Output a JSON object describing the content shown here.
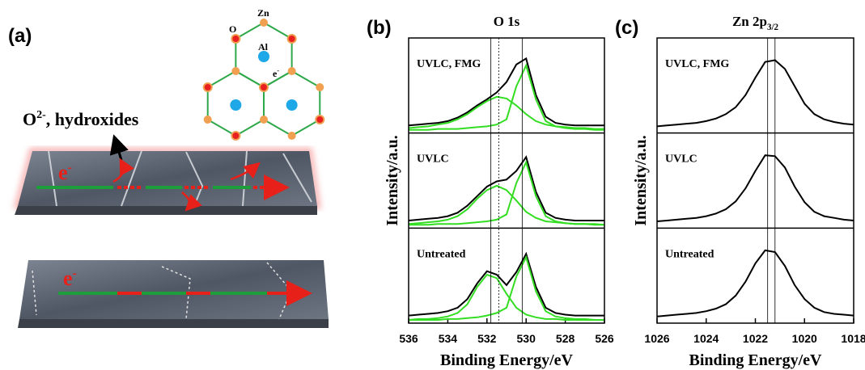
{
  "panel_a": {
    "label": "(a)",
    "lattice": {
      "Zn": "Zn",
      "O": "O",
      "Al": "Al",
      "electron": {
        "base": "e",
        "sup": "-"
      }
    },
    "annotation": {
      "base": "O",
      "sup": "2-",
      "rest": ",  hydroxides"
    },
    "top_electron": {
      "base": "e",
      "sup": "-"
    },
    "bottom_electron": {
      "base": "e",
      "sup": "-"
    }
  },
  "chart_data": [
    {
      "type": "line",
      "panel_label": "(b)",
      "title": "O 1s",
      "x_label": "Binding Energy/eV",
      "y_label": "Intensity/a.u.",
      "x": [
        536,
        535.5,
        535,
        534.5,
        534,
        533.5,
        533,
        532.5,
        532,
        531.5,
        531,
        530.5,
        530,
        529.5,
        529,
        528.5,
        528,
        527.5,
        527,
        526.5,
        526
      ],
      "xlim": [
        536,
        526
      ],
      "xticks": [
        536,
        534,
        532,
        530,
        528,
        526
      ],
      "ylim": [
        0,
        100
      ],
      "reference_lines": [
        {
          "value": 531.8,
          "style": "solid"
        },
        {
          "value": 531.4,
          "style": "dotted"
        },
        {
          "value": 530.2,
          "style": "solid"
        }
      ],
      "subplots": [
        {
          "label": "UVLC, FMG",
          "series": [
            {
              "color": "#000000",
              "values": [
                5,
                6,
                7,
                8,
                10,
                14,
                20,
                28,
                35,
                43,
                55,
                75,
                82,
                40,
                15,
                8,
                6,
                5,
                5,
                5,
                5
              ]
            },
            {
              "color": "#33dd22",
              "values": [
                0,
                0,
                0,
                1,
                1,
                1,
                2,
                3,
                4,
                6,
                12,
                50,
                74,
                35,
                10,
                4,
                2,
                1,
                1,
                0,
                0
              ]
            },
            {
              "color": "#33dd22",
              "values": [
                2,
                3,
                4,
                6,
                8,
                12,
                18,
                26,
                33,
                38,
                36,
                28,
                18,
                10,
                6,
                4,
                3,
                2,
                2,
                1,
                1
              ]
            }
          ]
        },
        {
          "label": "UVLC",
          "series": [
            {
              "color": "#000000",
              "values": [
                5,
                6,
                7,
                8,
                10,
                14,
                22,
                33,
                44,
                50,
                52,
                62,
                78,
                38,
                14,
                8,
                6,
                5,
                5,
                5,
                5
              ]
            },
            {
              "color": "#33dd22",
              "values": [
                0,
                0,
                0,
                1,
                1,
                1,
                2,
                3,
                4,
                6,
                12,
                48,
                72,
                33,
                10,
                4,
                2,
                1,
                1,
                0,
                0
              ]
            },
            {
              "color": "#33dd22",
              "values": [
                1,
                2,
                3,
                4,
                6,
                10,
                18,
                30,
                40,
                45,
                40,
                28,
                15,
                8,
                4,
                3,
                2,
                1,
                1,
                1,
                0
              ]
            }
          ]
        },
        {
          "label": "Untreated",
          "series": [
            {
              "color": "#000000",
              "values": [
                5,
                6,
                7,
                8,
                10,
                14,
                24,
                42,
                56,
                52,
                40,
                55,
                76,
                38,
                14,
                8,
                6,
                5,
                5,
                5,
                5
              ]
            },
            {
              "color": "#33dd22",
              "values": [
                0,
                1,
                1,
                2,
                4,
                8,
                18,
                38,
                52,
                48,
                30,
                14,
                6,
                3,
                1,
                1,
                0,
                0,
                0,
                0,
                0
              ]
            },
            {
              "color": "#33dd22",
              "values": [
                0,
                0,
                0,
                0,
                1,
                1,
                2,
                3,
                5,
                8,
                14,
                50,
                72,
                33,
                10,
                4,
                2,
                1,
                1,
                0,
                0
              ]
            }
          ]
        }
      ]
    },
    {
      "type": "line",
      "panel_label": "(c)",
      "title": {
        "base": "Zn 2p",
        "sub": "3/2"
      },
      "x_label": "Binding Energy/eV",
      "y_label": "Intensity/a.u.",
      "x": [
        1026,
        1025.6,
        1025.2,
        1024.8,
        1024.4,
        1024,
        1023.6,
        1023.2,
        1022.8,
        1022.4,
        1022,
        1021.6,
        1021.2,
        1020.8,
        1020.4,
        1020,
        1019.6,
        1019.2,
        1018.8,
        1018.4,
        1018
      ],
      "xlim": [
        1026,
        1018
      ],
      "xticks": [
        1026,
        1024,
        1022,
        1020,
        1018
      ],
      "ylim": [
        0,
        100
      ],
      "reference_lines": [
        {
          "value": 1021.5,
          "style": "solid"
        },
        {
          "value": 1021.2,
          "style": "solid"
        }
      ],
      "subplots": [
        {
          "label": "UVLC, FMG",
          "series": [
            {
              "color": "#000000",
              "values": [
                4,
                5,
                6,
                7,
                8,
                10,
                13,
                18,
                26,
                40,
                60,
                78,
                80,
                70,
                50,
                30,
                18,
                12,
                9,
                7,
                6
              ]
            }
          ]
        },
        {
          "label": "UVLC",
          "series": [
            {
              "color": "#000000",
              "values": [
                4,
                5,
                6,
                7,
                8,
                10,
                13,
                18,
                27,
                42,
                62,
                80,
                79,
                66,
                44,
                26,
                15,
                10,
                8,
                6,
                5
              ]
            }
          ]
        },
        {
          "label": "Untreated",
          "series": [
            {
              "color": "#000000",
              "values": [
                4,
                5,
                6,
                7,
                8,
                10,
                13,
                18,
                28,
                44,
                65,
                80,
                78,
                62,
                40,
                24,
                14,
                9,
                7,
                6,
                5
              ]
            }
          ]
        }
      ]
    }
  ]
}
